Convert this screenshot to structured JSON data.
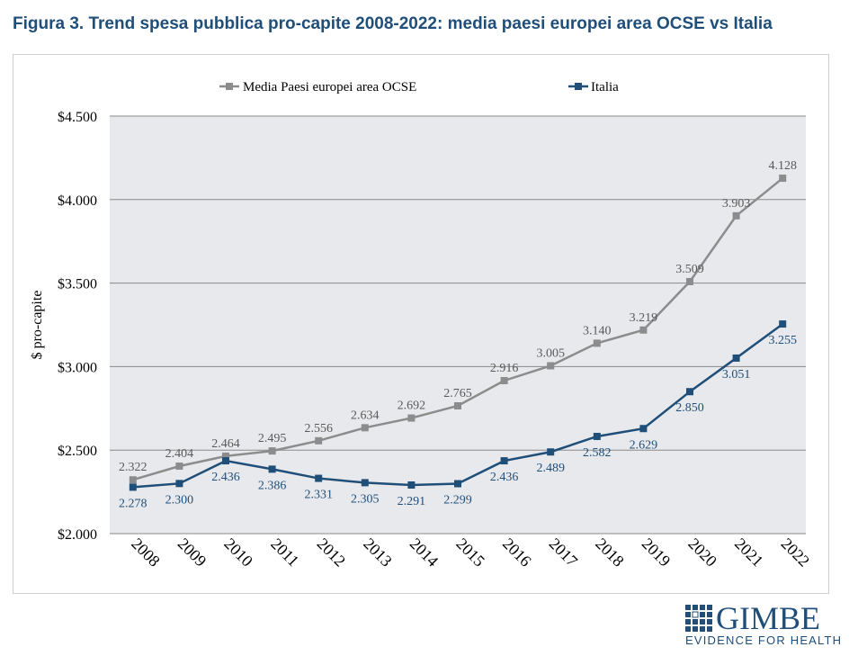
{
  "figure": {
    "title": "Figura 3. Trend spesa pubblica pro-capite 2008-2022: media paesi europei area OCSE vs Italia"
  },
  "logo": {
    "name": "GIMBE",
    "tagline": "EVIDENCE FOR HEALTH"
  },
  "chart_data": {
    "type": "line",
    "title": "",
    "xlabel": "",
    "ylabel": "$ pro-capite",
    "ylim": [
      2000,
      4500
    ],
    "yticks": [
      2000,
      2500,
      3000,
      3500,
      4000,
      4500
    ],
    "ytick_labels": [
      "$2.000",
      "$2.500",
      "$3.000",
      "$3.500",
      "$4.000",
      "$4.500"
    ],
    "grid": true,
    "legend_position": "top",
    "categories": [
      "2008",
      "2009",
      "2010",
      "2011",
      "2012",
      "2013",
      "2014",
      "2015",
      "2016",
      "2017",
      "2018",
      "2019",
      "2020",
      "2021",
      "2022"
    ],
    "series": [
      {
        "name": "Media Paesi europei area OCSE",
        "color": "#8c8c8c",
        "label_color": "#595959",
        "values": [
          2322,
          2404,
          2464,
          2495,
          2556,
          2634,
          2692,
          2765,
          2916,
          3005,
          3140,
          3219,
          3509,
          3903,
          4128
        ],
        "labels": [
          "2.322",
          "2.404",
          "2.464",
          "2.495",
          "2.556",
          "2.634",
          "2.692",
          "2.765",
          "2.916",
          "3.005",
          "3.140",
          "3.219",
          "3.509",
          "3.903",
          "4.128"
        ],
        "label_side": "above"
      },
      {
        "name": "Italia",
        "color": "#1f4e79",
        "label_color": "#1f4e79",
        "values": [
          2278,
          2300,
          2436,
          2386,
          2331,
          2305,
          2291,
          2299,
          2436,
          2489,
          2582,
          2629,
          2850,
          3051,
          3255
        ],
        "labels": [
          "2.278",
          "2.300",
          "2.436",
          "2.386",
          "2.331",
          "2.305",
          "2.291",
          "2.299",
          "2.436",
          "2.489",
          "2.582",
          "2.629",
          "2.850",
          "3.051",
          "3.255"
        ],
        "label_side": "below"
      }
    ]
  }
}
